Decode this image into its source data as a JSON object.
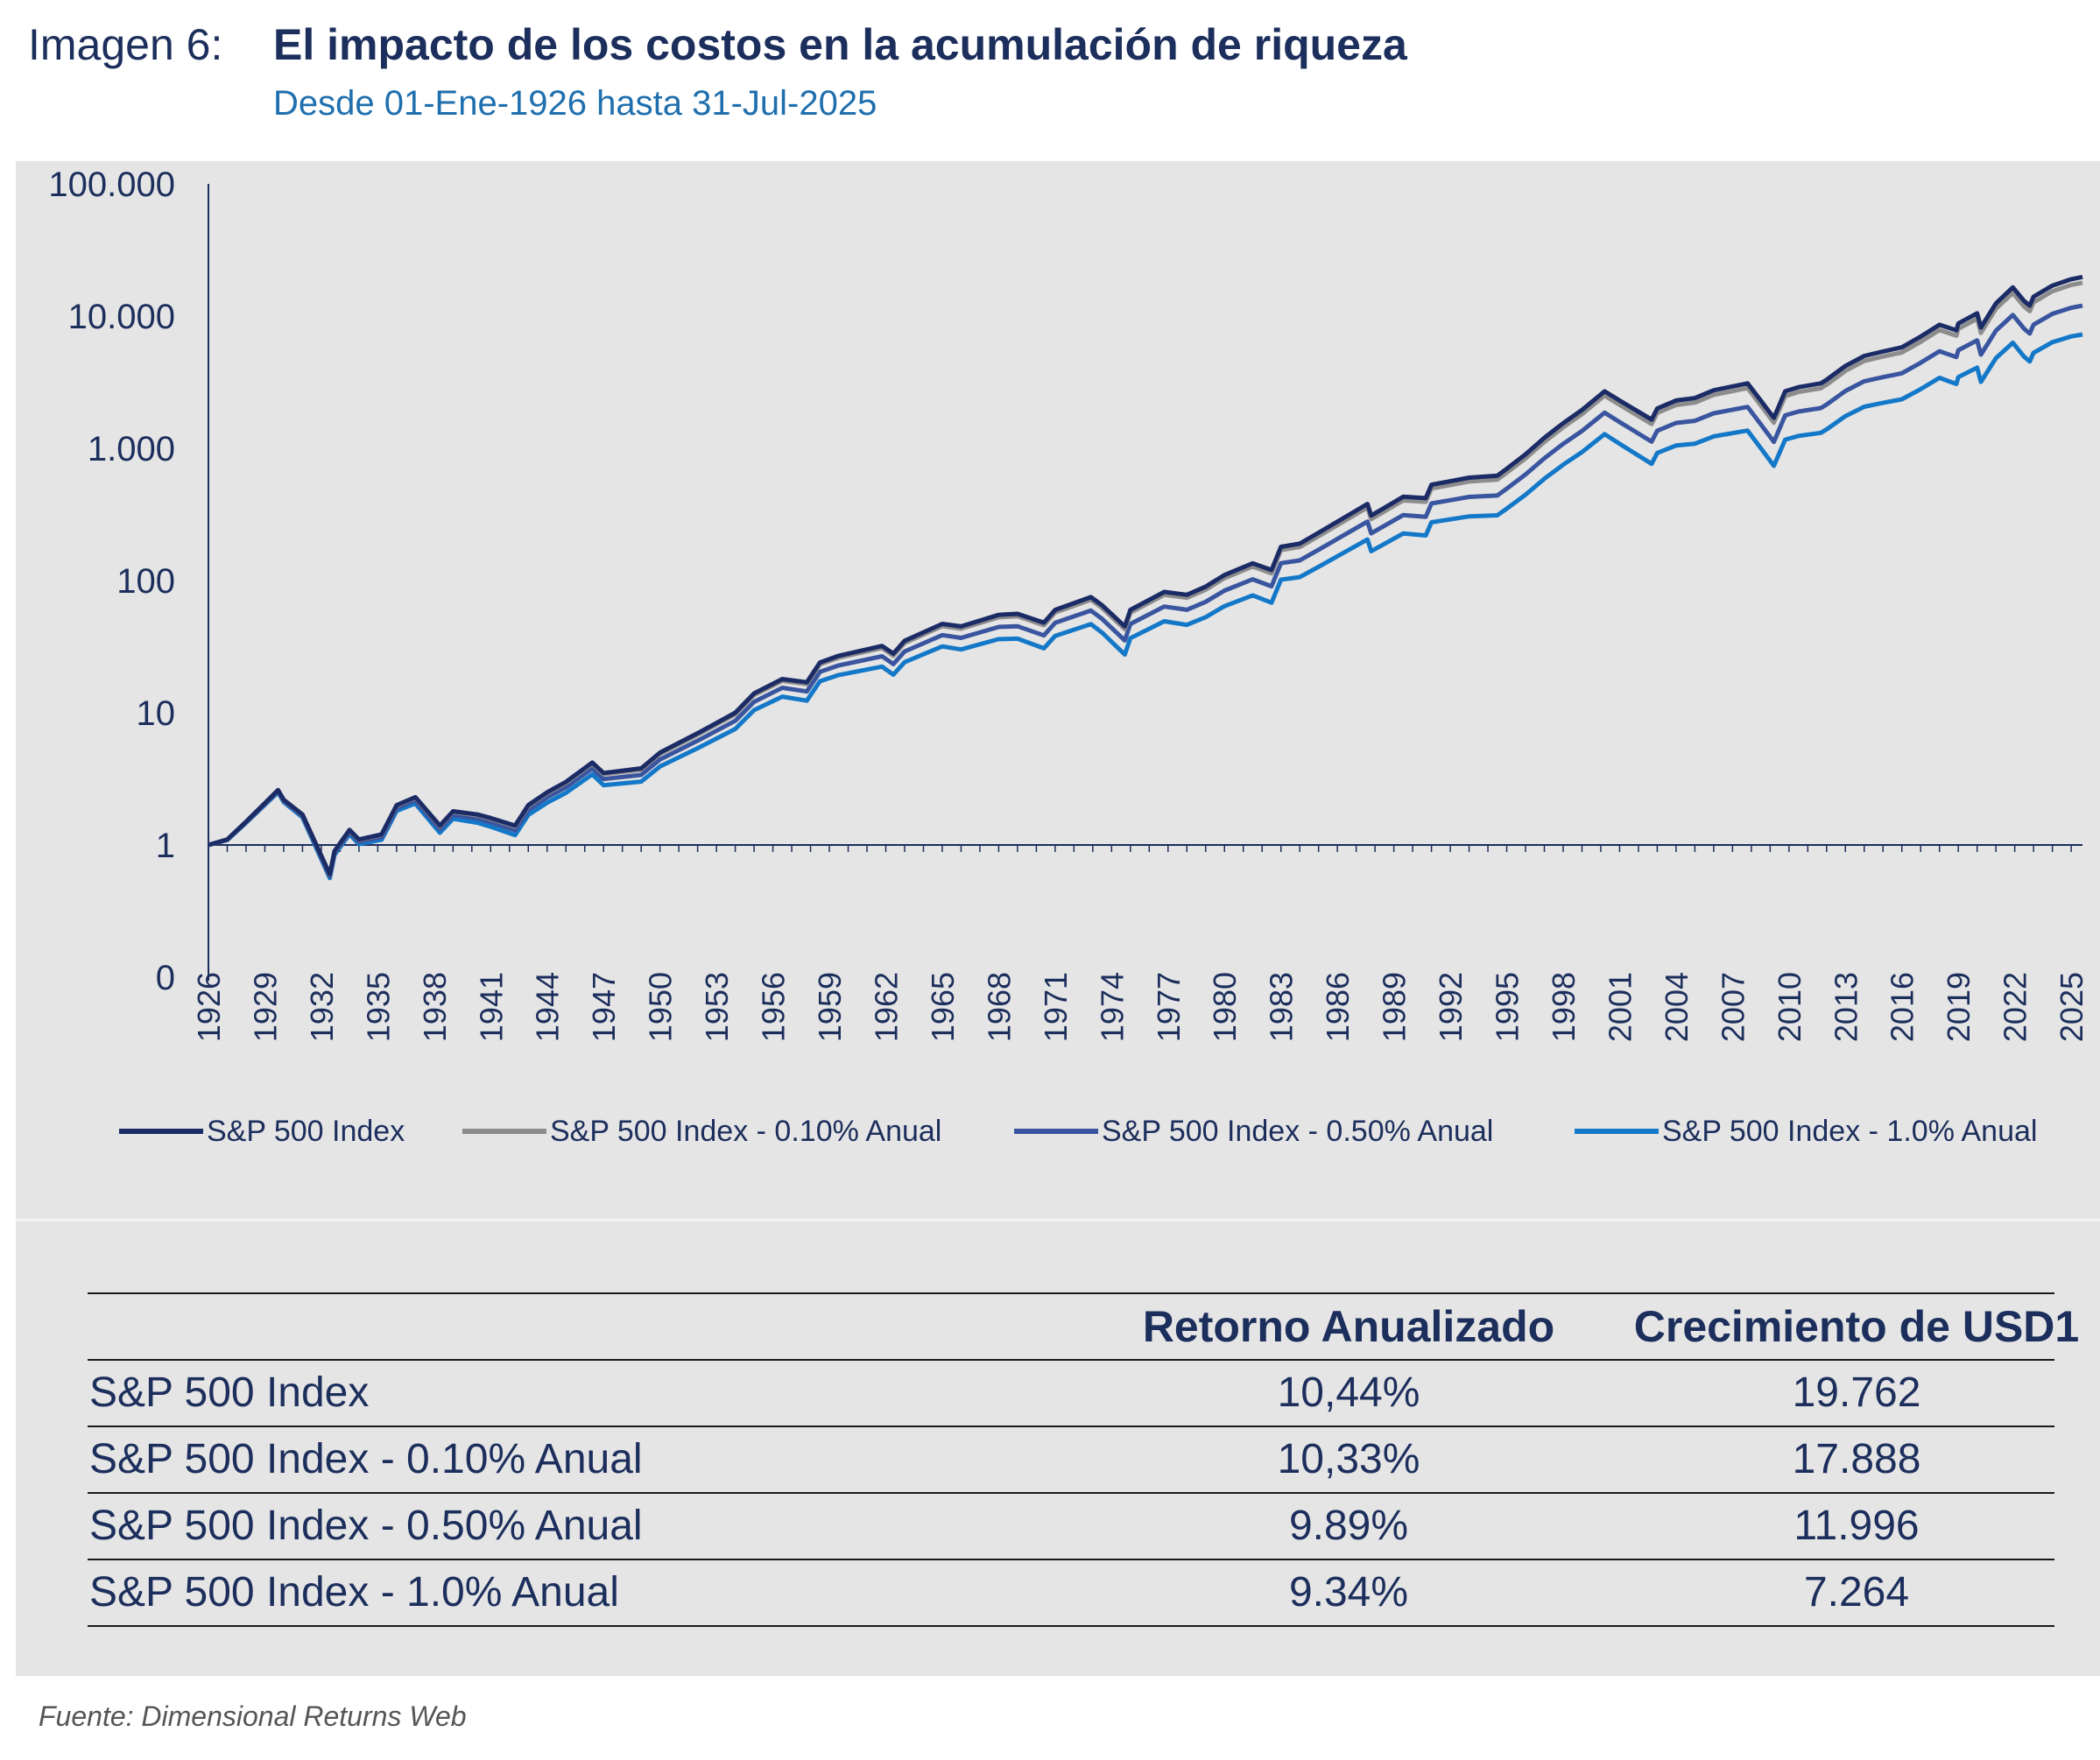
{
  "header": {
    "label": "Imagen 6:",
    "title": "El impacto de los costos en la acumulación de riqueza",
    "subtitle": "Desde 01-Ene-1926 hasta 31-Jul-2025"
  },
  "chart_data": {
    "type": "line",
    "y_scale": "log",
    "y_ticks": [
      {
        "value": 0,
        "label": "0"
      },
      {
        "value": 1,
        "label": "1"
      },
      {
        "value": 10,
        "label": "10"
      },
      {
        "value": 100,
        "label": "100"
      },
      {
        "value": 1000,
        "label": "1.000"
      },
      {
        "value": 10000,
        "label": "10.000"
      },
      {
        "value": 100000,
        "label": "100.000"
      }
    ],
    "x_range": [
      1926,
      2025.6
    ],
    "x_ticks": [
      "1926",
      "1929",
      "1932",
      "1935",
      "1938",
      "1941",
      "1944",
      "1947",
      "1950",
      "1953",
      "1956",
      "1959",
      "1962",
      "1965",
      "1968",
      "1971",
      "1974",
      "1977",
      "1980",
      "1983",
      "1986",
      "1989",
      "1992",
      "1995",
      "1998",
      "2001",
      "2004",
      "2007",
      "2010",
      "2013",
      "2016",
      "2019",
      "2022",
      "2025"
    ],
    "legend_position": "bottom",
    "grid": false,
    "base_series": {
      "name": "S&P 500 Index",
      "x": [
        1926,
        1927,
        1928,
        1929.7,
        1930,
        1931,
        1932.45,
        1932.7,
        1933.5,
        1934,
        1935.2,
        1936,
        1937,
        1938.3,
        1939,
        1940.3,
        1941,
        1942.3,
        1943,
        1944,
        1945,
        1946.4,
        1947,
        1949,
        1950,
        1952,
        1954,
        1955,
        1956.5,
        1957.8,
        1958.5,
        1959.5,
        1961.8,
        1962.4,
        1963,
        1965,
        1966,
        1968,
        1969,
        1970.4,
        1971,
        1972.9,
        1973.5,
        1974.7,
        1975,
        1976.8,
        1978,
        1979,
        1980,
        1981.5,
        1982.5,
        1983,
        1984,
        1985,
        1987.6,
        1987.8,
        1989.5,
        1990.7,
        1991,
        1993,
        1994.5,
        1995,
        1996,
        1997,
        1998,
        1999,
        2000.2,
        2001,
        2002.7,
        2003,
        2004,
        2005,
        2006,
        2007.8,
        2008.5,
        2009.2,
        2009.8,
        2010.5,
        2011.7,
        2012,
        2013,
        2014,
        2015,
        2016,
        2017,
        2018,
        2018.9,
        2019,
        2020,
        2020.2,
        2021,
        2021.9,
        2022.5,
        2022.8,
        2023,
        2024,
        2025,
        2025.6
      ],
      "y": [
        1,
        1.1,
        1.5,
        2.6,
        2.2,
        1.7,
        0.6,
        0.9,
        1.3,
        1.1,
        1.2,
        2.0,
        2.3,
        1.4,
        1.8,
        1.7,
        1.6,
        1.4,
        2.0,
        2.5,
        3.0,
        4.2,
        3.5,
        3.8,
        5.0,
        7.0,
        10.0,
        14.0,
        18.0,
        17.0,
        24.0,
        27.0,
        32.0,
        28.0,
        35.0,
        47.0,
        45.0,
        55.0,
        56.0,
        48.0,
        60.0,
        75.0,
        65.0,
        45.0,
        60.0,
        82.0,
        78.0,
        90.0,
        110.0,
        135.0,
        120.0,
        180.0,
        190.0,
        230.0,
        380.0,
        310.0,
        430.0,
        420.0,
        530.0,
        600.0,
        620.0,
        700.0,
        900.0,
        1200.0,
        1550.0,
        1950.0,
        2700.0,
        2300.0,
        1650.0,
        2000.0,
        2300.0,
        2400.0,
        2750.0,
        3100.0,
        2300.0,
        1700.0,
        2700.0,
        2900.0,
        3100.0,
        3300.0,
        4200.0,
        5000.0,
        5400.0,
        5800.0,
        7000.0,
        8600.0,
        7800.0,
        8800.0,
        10500.0,
        8200.0,
        12500.0,
        16500.0,
        13000.0,
        12000.0,
        14000.0,
        17000.0,
        19000.0,
        19762
      ]
    },
    "series": [
      {
        "name": "S&P 500 Index",
        "annual_cost_pct": 0.0,
        "color": "#1b2b66"
      },
      {
        "name": "S&P 500 Index - 0.10% Anual",
        "annual_cost_pct": 0.1,
        "color": "#8c8c8c"
      },
      {
        "name": "S&P 500 Index - 0.50% Anual",
        "annual_cost_pct": 0.5,
        "color": "#3a55a0"
      },
      {
        "name": "S&P 500 Index - 1.0% Anual",
        "annual_cost_pct": 1.0,
        "color": "#1478c8"
      }
    ]
  },
  "table": {
    "headers": [
      "",
      "Retorno Anualizado",
      "Crecimiento de USD1"
    ],
    "rows": [
      {
        "name": "S&P 500 Index",
        "ret": "10,44%",
        "growth": "19.762"
      },
      {
        "name": "S&P 500 Index - 0.10% Anual",
        "ret": "10,33%",
        "growth": "17.888"
      },
      {
        "name": "S&P 500 Index - 0.50% Anual",
        "ret": "9.89%",
        "growth": "11.996"
      },
      {
        "name": "S&P 500 Index - 1.0% Anual",
        "ret": "9.34%",
        "growth": "7.264"
      }
    ]
  },
  "source": "Fuente: Dimensional Returns Web"
}
